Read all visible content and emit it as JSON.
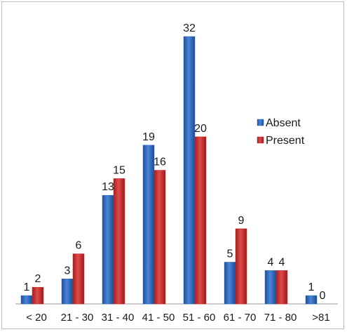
{
  "chart_data": {
    "type": "bar",
    "categories": [
      "< 20",
      "21 - 30",
      "31 - 40",
      "41 - 50",
      "51 - 60",
      "61 - 70",
      "71 - 80",
      ">81"
    ],
    "series": [
      {
        "name": "Absent",
        "values": [
          1,
          3,
          13,
          19,
          32,
          5,
          4,
          1
        ],
        "color": "#2f6bbf"
      },
      {
        "name": "Present",
        "values": [
          2,
          6,
          15,
          16,
          20,
          9,
          4,
          0
        ],
        "color": "#cc2b2b"
      }
    ],
    "ylim": [
      0,
      32
    ],
    "grid": false,
    "legend_position": "right"
  }
}
